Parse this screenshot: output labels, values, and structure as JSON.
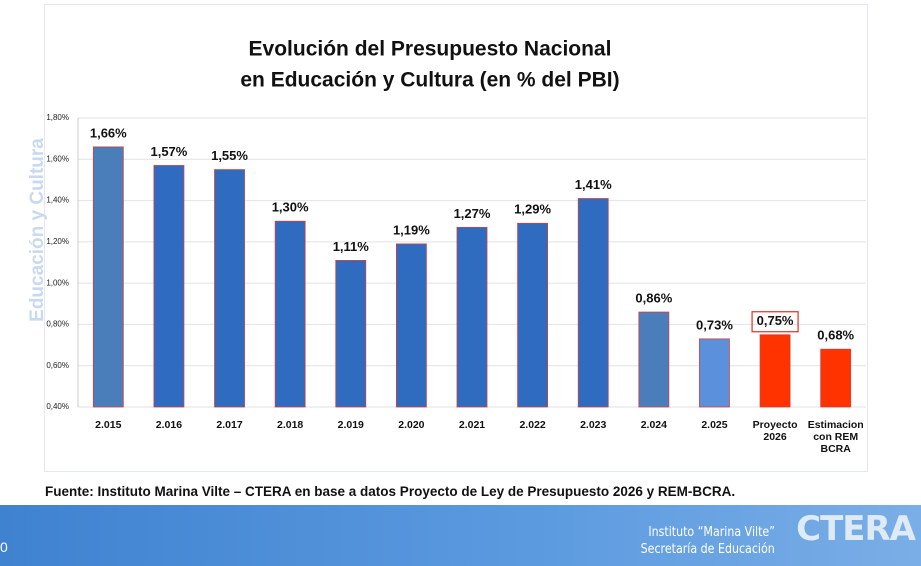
{
  "chart_data": {
    "type": "bar",
    "title": "Evolución del Presupuesto Nacional",
    "subtitle": "en Educación y Cultura (en % del PBI)",
    "side_label": "Educación y Cultura",
    "source": "Fuente: Instituto Marina Vilte – CTERA en base a datos Proyecto de Ley de Presupuesto 2026 y REM-BCRA.",
    "categories": [
      "2.015",
      "2.016",
      "2.017",
      "2.018",
      "2.019",
      "2.020",
      "2.021",
      "2.022",
      "2.023",
      "2.024",
      "2.025",
      "Proyecto 2026",
      "Estimacion con REM BCRA"
    ],
    "values": [
      1.66,
      1.57,
      1.55,
      1.3,
      1.11,
      1.19,
      1.27,
      1.29,
      1.41,
      0.86,
      0.73,
      0.75,
      0.68
    ],
    "value_labels": [
      "1,66%",
      "1,57%",
      "1,55%",
      "1,30%",
      "1,11%",
      "1,19%",
      "1,27%",
      "1,29%",
      "1,41%",
      "0,86%",
      "0,73%",
      "0,75%",
      "0,68%"
    ],
    "colors": [
      "#4a7ebb",
      "#2f6cc0",
      "#2f6cc0",
      "#2f6cc0",
      "#2f6cc0",
      "#2f6cc0",
      "#2f6cc0",
      "#2f6cc0",
      "#2f6cc0",
      "#4a7ebb",
      "#5b90da",
      "#ff3300",
      "#ff3300"
    ],
    "ylim": [
      0.4,
      1.8
    ],
    "yticks": [
      {
        "value": 0.4,
        "label": "0,40%"
      },
      {
        "value": 0.6,
        "label": "0,60%"
      },
      {
        "value": 0.8,
        "label": "0,80%"
      },
      {
        "value": 1.0,
        "label": "1,00%"
      },
      {
        "value": 1.2,
        "label": "1,20%"
      },
      {
        "value": 1.4,
        "label": "1,40%"
      },
      {
        "value": 1.6,
        "label": "1,60%"
      },
      {
        "value": 1.8,
        "label": "1,80%"
      }
    ],
    "grid": true
  },
  "footer": {
    "line1": "Instituto “Marina Vilte”",
    "line2": "Secretaría de Educación",
    "logo": "CTERA",
    "page": "0"
  }
}
